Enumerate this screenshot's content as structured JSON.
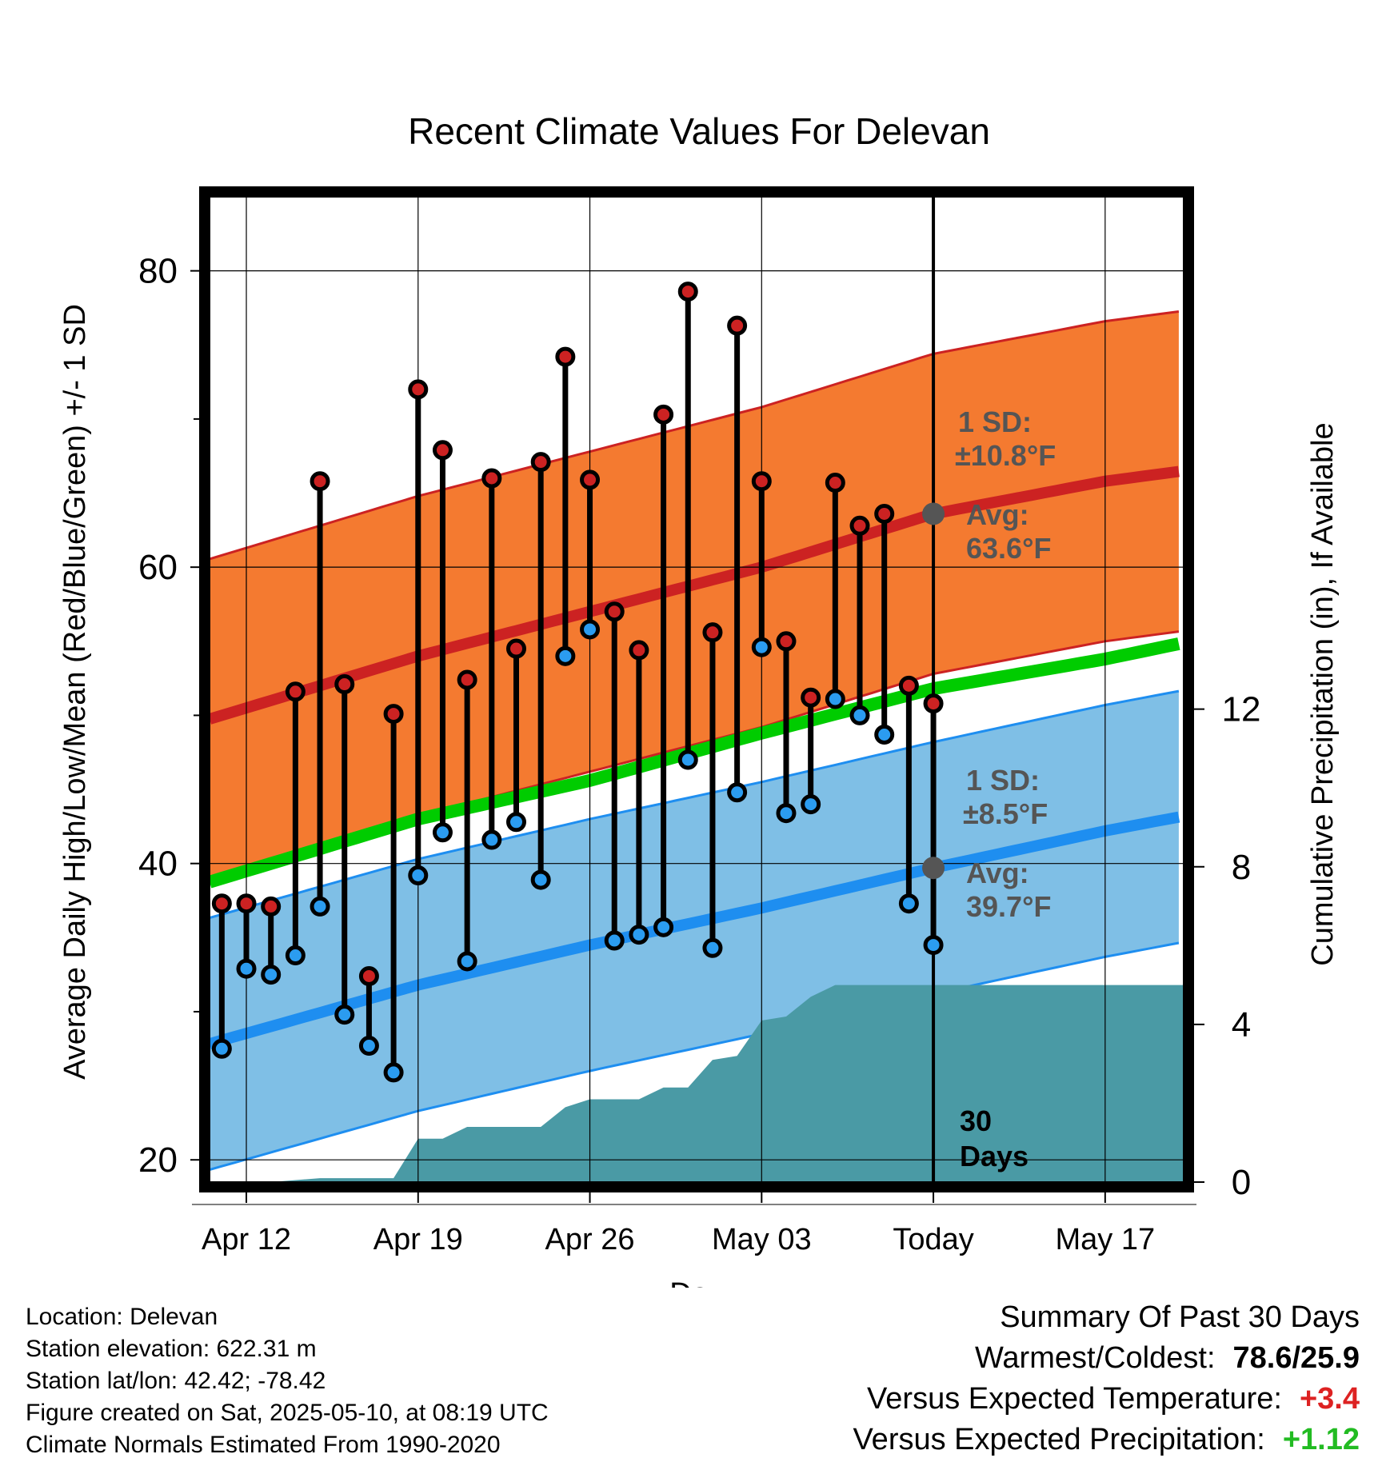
{
  "chart_data": {
    "type": "line",
    "title": "Recent Climate Values For Delevan",
    "xlabel": "Day",
    "ylabel": "Average Daily High/Low/Mean (Red/Blue/Green) +/- 1 SD",
    "y2label": "Cumulative Precipitation (in), If Available",
    "xlim": [
      -1.5,
      38.2
    ],
    "ylim": [
      18.5,
      85
    ],
    "y2lim": [
      0,
      25
    ],
    "x_ticks": [
      {
        "x": 0,
        "label": "Apr 12"
      },
      {
        "x": 7,
        "label": "Apr 19"
      },
      {
        "x": 14,
        "label": "Apr 26"
      },
      {
        "x": 21,
        "label": "May 03"
      },
      {
        "x": 28,
        "label": "Today"
      },
      {
        "x": 35,
        "label": "May 17"
      }
    ],
    "y_ticks": [
      20,
      40,
      60,
      80
    ],
    "y_minor_ticks": [
      30,
      50,
      70
    ],
    "y2_ticks": [
      0,
      4,
      8,
      12
    ],
    "grid": true,
    "today_x": 28,
    "today_label": "30\nDays",
    "observed": {
      "days": [
        "Apr 11",
        "Apr 12",
        "Apr 13",
        "Apr 14",
        "Apr 15",
        "Apr 16",
        "Apr 17",
        "Apr 18",
        "Apr 19",
        "Apr 20",
        "Apr 21",
        "Apr 22",
        "Apr 23",
        "Apr 24",
        "Apr 25",
        "Apr 26",
        "Apr 27",
        "Apr 28",
        "Apr 29",
        "Apr 30",
        "May 01",
        "May 02",
        "May 03",
        "May 04",
        "May 05",
        "May 06",
        "May 07",
        "May 08",
        "May 09",
        "May 10"
      ],
      "high": [
        37.3,
        37.3,
        37.1,
        51.6,
        65.8,
        52.1,
        32.4,
        50.1,
        72.0,
        67.9,
        52.4,
        66.0,
        54.5,
        67.1,
        74.2,
        65.9,
        57.0,
        54.4,
        70.3,
        78.6,
        55.6,
        76.3,
        65.8,
        55.0,
        51.2,
        65.7,
        62.8,
        63.6,
        52.0,
        50.8
      ],
      "low": [
        27.5,
        32.9,
        32.5,
        33.8,
        37.1,
        29.8,
        27.7,
        25.9,
        39.2,
        42.1,
        33.4,
        41.6,
        42.8,
        38.9,
        54.0,
        55.8,
        34.8,
        35.2,
        35.7,
        47.0,
        34.3,
        44.8,
        54.6,
        43.4,
        44.0,
        51.1,
        50.0,
        48.7,
        37.3,
        34.5
      ]
    },
    "series": [
      {
        "name": "High normal",
        "color": "#cc2222",
        "x": [
          -2,
          7,
          14,
          21,
          28,
          35,
          38.2
        ],
        "values": [
          49.5,
          54.0,
          57.0,
          60.0,
          63.6,
          65.8,
          66.5
        ]
      },
      {
        "name": "Low normal",
        "color": "#1e8ef0",
        "x": [
          -2,
          7,
          14,
          21,
          28,
          35,
          38.2
        ],
        "values": [
          27.6,
          31.8,
          34.5,
          37.0,
          39.7,
          42.2,
          43.2
        ]
      },
      {
        "name": "Mean normal",
        "color": "#00cc00",
        "x": [
          -2,
          7,
          14,
          21,
          28,
          35,
          38.2
        ],
        "values": [
          38.5,
          43.0,
          45.6,
          48.8,
          51.8,
          53.8,
          54.9
        ]
      }
    ],
    "high_sd": 10.8,
    "low_sd": 8.5,
    "precipitation": {
      "x": [
        -1.5,
        1,
        3,
        6,
        7,
        8,
        9,
        10,
        11,
        12,
        13,
        14,
        15,
        16,
        17,
        18,
        19,
        20,
        21,
        22,
        23,
        24,
        25,
        26,
        27,
        28,
        29,
        30,
        31,
        32,
        33,
        34,
        35,
        36,
        37,
        38.2
      ],
      "values": [
        0,
        0,
        0.1,
        0.1,
        1.1,
        1.1,
        1.4,
        1.4,
        1.4,
        1.4,
        1.9,
        2.1,
        2.1,
        2.1,
        2.4,
        2.4,
        3.1,
        3.2,
        4.1,
        4.2,
        4.7,
        5.0,
        5.0,
        5.0,
        5.0,
        5.0,
        5.0,
        5.0,
        5.0,
        5.0,
        5.0,
        5.0,
        5.0,
        5.0,
        5.0,
        5.0
      ]
    },
    "annotations": {
      "high": {
        "sd_title": "1 SD:",
        "sd_value": "±10.8°F",
        "avg_title": "Avg:",
        "avg_value": "63.6°F"
      },
      "low": {
        "sd_title": "1 SD:",
        "sd_value": "±8.5°F",
        "avg_title": "Avg:",
        "avg_value": "39.7°F"
      }
    }
  },
  "meta": {
    "location": "Location: Delevan",
    "elevation": "Station elevation: 622.31 m",
    "latlon": "Station lat/lon: 42.42; -78.42",
    "created": "Figure created on Sat, 2025-05-10, at 08:19 UTC",
    "normals": "Climate Normals Estimated From 1990-2020"
  },
  "summary": {
    "title": "Summary Of Past 30 Days",
    "warm_cold_label": "Warmest/Coldest:",
    "warm_cold_value": "78.6/25.9",
    "temp_label": "Versus Expected Temperature:",
    "temp_value": "+3.4",
    "temp_color": "#dd2222",
    "precip_label": "Versus Expected Precipitation:",
    "precip_value": "+1.12",
    "precip_color": "#22bb22"
  },
  "colors": {
    "high_band": "#f47a30",
    "low_band": "#7fbfe6",
    "precip_fill": "#4a9aa5",
    "high_dot": "#cc2222",
    "low_dot": "#2b9cf0",
    "annotation_text": "#555555"
  }
}
